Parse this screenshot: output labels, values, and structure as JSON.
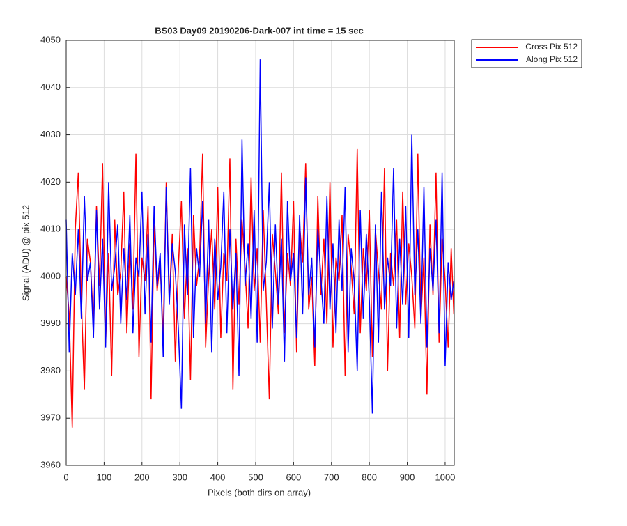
{
  "chart_data": {
    "type": "line",
    "title": "BS03 Day09 20190206-Dark-007 int time = 15 sec",
    "xlabel": "Pixels (both dirs on array)",
    "ylabel": "Signal (ADU) @ pix 512",
    "x": [
      0,
      8,
      16,
      24,
      32,
      40,
      48,
      56,
      64,
      72,
      80,
      88,
      96,
      104,
      112,
      120,
      128,
      136,
      144,
      152,
      160,
      168,
      176,
      184,
      192,
      200,
      208,
      216,
      224,
      232,
      240,
      248,
      256,
      264,
      272,
      280,
      288,
      296,
      304,
      312,
      320,
      328,
      336,
      344,
      352,
      360,
      368,
      376,
      384,
      392,
      400,
      408,
      416,
      424,
      432,
      440,
      448,
      456,
      464,
      472,
      480,
      488,
      496,
      504,
      512,
      520,
      528,
      536,
      544,
      552,
      560,
      568,
      576,
      584,
      592,
      600,
      608,
      616,
      624,
      632,
      640,
      648,
      656,
      664,
      672,
      680,
      688,
      696,
      704,
      712,
      720,
      728,
      736,
      744,
      752,
      760,
      768,
      776,
      784,
      792,
      800,
      808,
      816,
      824,
      832,
      840,
      848,
      856,
      864,
      872,
      880,
      888,
      896,
      904,
      912,
      920,
      928,
      936,
      944,
      952,
      960,
      968,
      976,
      984,
      992,
      1000,
      1008,
      1016,
      1023
    ],
    "series": [
      {
        "name": "Cross Pix 512",
        "color": "#ff0000",
        "values": [
          4000,
          3992,
          3968,
          4010,
          4022,
          3995,
          3976,
          4008,
          4003,
          3990,
          4015,
          3998,
          4024,
          3986,
          4005,
          3979,
          4012,
          3996,
          4001,
          4018,
          3988,
          4007,
          3993,
          4026,
          3983,
          4004,
          3999,
          4015,
          3974,
          4011,
          3997,
          4003,
          3987,
          4020,
          3995,
          4009,
          3982,
          4002,
          4016,
          3991,
          4006,
          3978,
          4013,
          3998,
          4004,
          4026,
          3985,
          4000,
          4010,
          3993,
          4019,
          3987,
          4005,
          3999,
          4025,
          3976,
          4008,
          3994,
          4012,
          4002,
          3989,
          4021,
          3997,
          4006,
          3986,
          4014,
          3995,
          3974,
          4009,
          4001,
          3992,
          4022,
          3988,
          4005,
          3998,
          4016,
          3984,
          4011,
          4003,
          4024,
          3993,
          4000,
          3981,
          4017,
          3996,
          4008,
          3990,
          4020,
          3985,
          4004,
          3999,
          4013,
          3979,
          4009,
          4002,
          3992,
          4027,
          3988,
          4006,
          3997,
          4014,
          3983,
          4010,
          4001,
          3993,
          4023,
          3980,
          4005,
          3998,
          4012,
          3987,
          4018,
          3994,
          4007,
          4000,
          3989,
          4026,
          3991,
          4004,
          3975,
          4011,
          3996,
          4022,
          3986,
          4008,
          3999,
          3985,
          4006,
          3992
        ]
      },
      {
        "name": "Along Pix 512",
        "color": "#0000ff",
        "values": [
          4012,
          3984,
          4005,
          3996,
          4010,
          3991,
          4017,
          3999,
          4003,
          3987,
          4014,
          3993,
          4008,
          3985,
          4020,
          3997,
          4002,
          4011,
          3990,
          4006,
          3995,
          4013,
          3988,
          4004,
          4000,
          4018,
          3992,
          4009,
          3986,
          4015,
          3998,
          4005,
          3983,
          4019,
          3994,
          4007,
          4001,
          3989,
          3972,
          4011,
          3996,
          4023,
          3987,
          4006,
          4000,
          4016,
          3990,
          4012,
          3984,
          4008,
          3995,
          4002,
          4018,
          3988,
          4010,
          3993,
          4005,
          3979,
          4029,
          3998,
          4007,
          3991,
          4014,
          3986,
          4046,
          3997,
          4003,
          4020,
          3989,
          4011,
          3994,
          4008,
          3982,
          4016,
          3999,
          4005,
          3987,
          4013,
          3992,
          4021,
          3996,
          4004,
          3985,
          4010,
          4000,
          3990,
          4017,
          3993,
          4007,
          3988,
          4012,
          3997,
          4019,
          3984,
          4006,
          3999,
          3980,
          4014,
          3991,
          4009,
          3995,
          3971,
          4011,
          3986,
          4018,
          3993,
          4004,
          3998,
          4023,
          3989,
          4008,
          3994,
          4015,
          3987,
          4030,
          3996,
          4010,
          3990,
          4019,
          3985,
          4006,
          3997,
          4012,
          3988,
          4022,
          3981,
          4003,
          3995,
          3999
        ]
      }
    ],
    "xlim": [
      0,
      1024
    ],
    "ylim": [
      3960,
      4050
    ],
    "xticks": [
      0,
      100,
      200,
      300,
      400,
      500,
      600,
      700,
      800,
      900,
      1000
    ],
    "yticks": [
      3960,
      3970,
      3980,
      3990,
      4000,
      4010,
      4020,
      4030,
      4040,
      4050
    ],
    "grid": true,
    "legend": "northeastoutside"
  }
}
